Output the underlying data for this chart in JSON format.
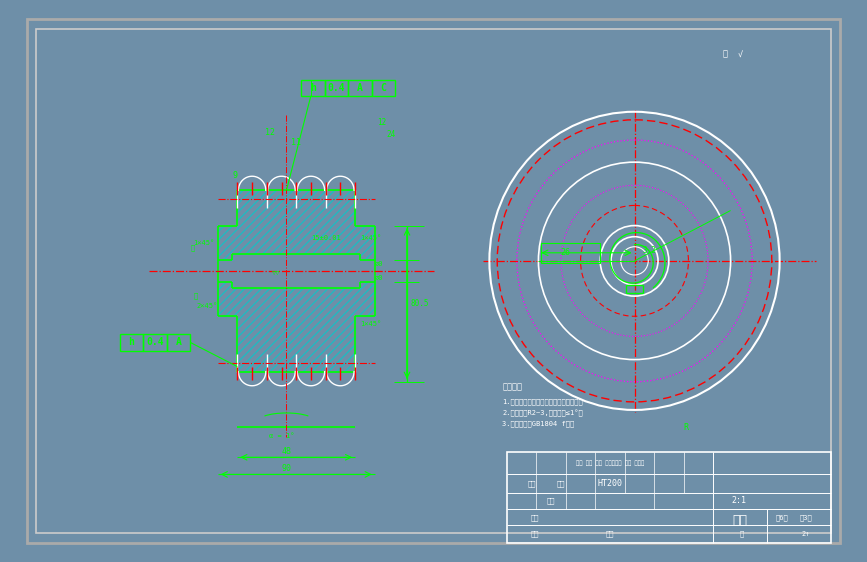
{
  "bg_color": "#000000",
  "border_outer_color": "#aaaaaa",
  "border_inner_color": "#cccccc",
  "green": "#00ff00",
  "red": "#ff0000",
  "white": "#ffffff",
  "magenta": "#ff00ff",
  "cyan": "#00cccc",
  "fig_bg": "#6e8fa8",
  "drawing_title": "带轮",
  "material": "HT200",
  "scale": "2:1",
  "notes_line1": "技术要求",
  "notes_line2": "1.铸件不允许有裂纹、气孔等铸造缺陷。",
  "notes_line3": "2.铸造圆角R2~3,起模斜度≤1°。",
  "notes_line4": "3.未注公差按GB1804 f级。"
}
